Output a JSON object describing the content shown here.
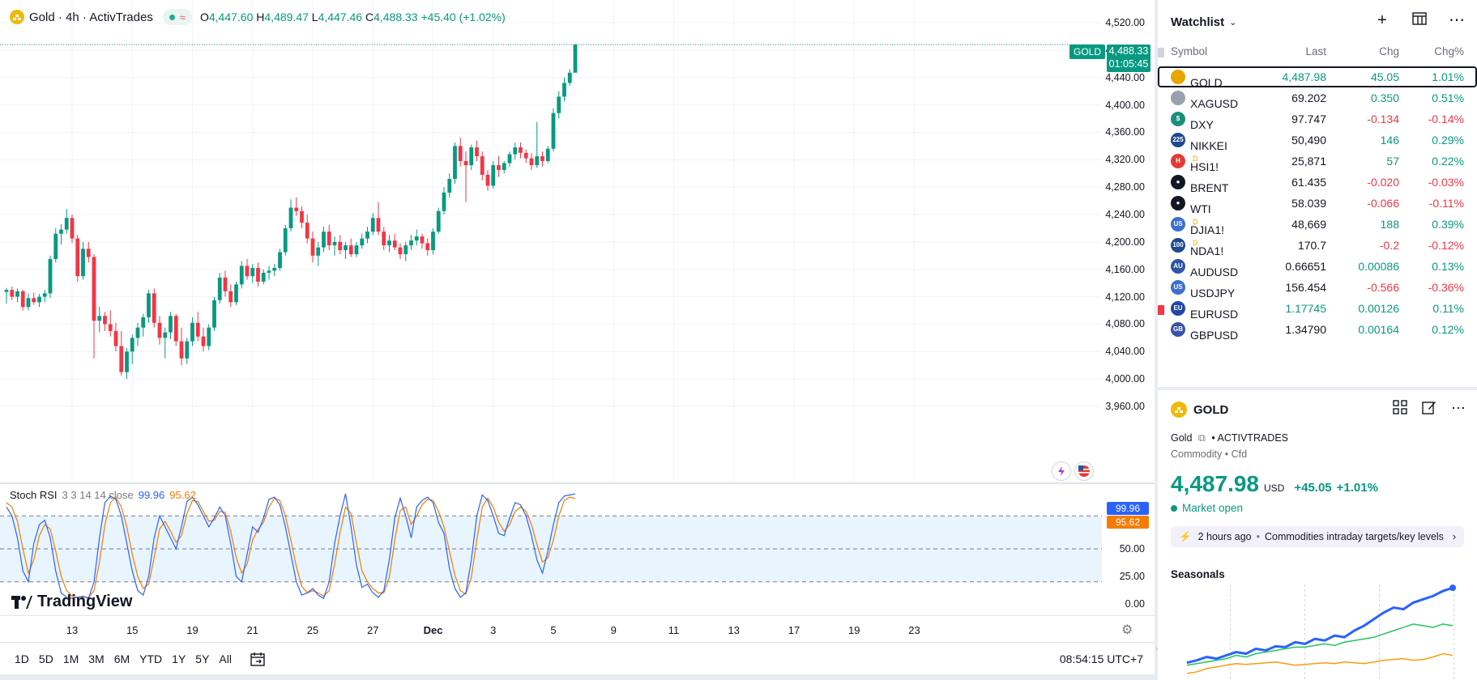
{
  "legend": {
    "symbol_title": "Gold · 4h · ActivTrades",
    "wave_glyph": "≈",
    "o_label": "O",
    "o": "4,447.60",
    "h_label": "H",
    "h": "4,489.47",
    "l_label": "L",
    "l": "4,447.46",
    "c_label": "C",
    "c": "4,488.33",
    "change": "+45.40 (+1.02%)"
  },
  "price_axis": {
    "ticks": [
      "4,520.00",
      "4,480.00",
      "4,440.00",
      "4,400.00",
      "4,360.00",
      "4,320.00",
      "4,280.00",
      "4,240.00",
      "4,200.00",
      "4,160.00",
      "4,120.00",
      "4,080.00",
      "4,040.00",
      "4,000.00",
      "3,960.00"
    ],
    "current_price": "4,488.33",
    "countdown": "01:05:45",
    "symbol_tag": "GOLD"
  },
  "candles": [
    [
      4127,
      4133,
      4110,
      4130
    ],
    [
      4130,
      4135,
      4115,
      4120
    ],
    [
      4120,
      4132,
      4112,
      4128
    ],
    [
      4128,
      4130,
      4100,
      4105
    ],
    [
      4105,
      4125,
      4100,
      4118
    ],
    [
      4118,
      4126,
      4108,
      4112
    ],
    [
      4112,
      4124,
      4105,
      4120
    ],
    [
      4120,
      4130,
      4112,
      4125
    ],
    [
      4125,
      4180,
      4118,
      4175
    ],
    [
      4175,
      4220,
      4170,
      4212
    ],
    [
      4212,
      4226,
      4196,
      4218
    ],
    [
      4218,
      4248,
      4212,
      4235
    ],
    [
      4235,
      4240,
      4198,
      4205
    ],
    [
      4205,
      4210,
      4142,
      4150
    ],
    [
      4150,
      4200,
      4145,
      4190
    ],
    [
      4190,
      4200,
      4170,
      4178
    ],
    [
      4178,
      4182,
      4030,
      4085
    ],
    [
      4085,
      4105,
      4068,
      4092
    ],
    [
      4092,
      4098,
      4070,
      4080
    ],
    [
      4080,
      4100,
      4062,
      4070
    ],
    [
      4070,
      4082,
      4040,
      4048
    ],
    [
      4048,
      4070,
      4005,
      4010
    ],
    [
      4010,
      4045,
      4000,
      4040
    ],
    [
      4040,
      4065,
      4022,
      4060
    ],
    [
      4060,
      4082,
      4048,
      4075
    ],
    [
      4075,
      4095,
      4062,
      4090
    ],
    [
      4090,
      4130,
      4082,
      4125
    ],
    [
      4125,
      4132,
      4075,
      4082
    ],
    [
      4082,
      4092,
      4050,
      4060
    ],
    [
      4060,
      4075,
      4030,
      4068
    ],
    [
      4068,
      4098,
      4058,
      4092
    ],
    [
      4092,
      4095,
      4048,
      4055
    ],
    [
      4055,
      4075,
      4020,
      4030
    ],
    [
      4030,
      4060,
      4022,
      4055
    ],
    [
      4055,
      4090,
      4048,
      4082
    ],
    [
      4082,
      4098,
      4055,
      4062
    ],
    [
      4062,
      4075,
      4040,
      4048
    ],
    [
      4048,
      4080,
      4042,
      4075
    ],
    [
      4075,
      4120,
      4070,
      4115
    ],
    [
      4115,
      4155,
      4110,
      4148
    ],
    [
      4148,
      4158,
      4120,
      4128
    ],
    [
      4128,
      4138,
      4105,
      4112
    ],
    [
      4112,
      4142,
      4108,
      4138
    ],
    [
      4138,
      4172,
      4132,
      4165
    ],
    [
      4165,
      4175,
      4145,
      4150
    ],
    [
      4150,
      4168,
      4140,
      4162
    ],
    [
      4162,
      4170,
      4135,
      4142
    ],
    [
      4142,
      4160,
      4138,
      4155
    ],
    [
      4155,
      4165,
      4145,
      4158
    ],
    [
      4158,
      4168,
      4150,
      4162
    ],
    [
      4162,
      4190,
      4158,
      4185
    ],
    [
      4185,
      4225,
      4180,
      4220
    ],
    [
      4220,
      4262,
      4215,
      4250
    ],
    [
      4250,
      4265,
      4238,
      4245
    ],
    [
      4245,
      4252,
      4220,
      4228
    ],
    [
      4228,
      4240,
      4198,
      4205
    ],
    [
      4205,
      4215,
      4170,
      4180
    ],
    [
      4180,
      4200,
      4165,
      4192
    ],
    [
      4192,
      4222,
      4185,
      4215
    ],
    [
      4215,
      4225,
      4188,
      4195
    ],
    [
      4195,
      4208,
      4180,
      4200
    ],
    [
      4200,
      4210,
      4182,
      4188
    ],
    [
      4188,
      4200,
      4175,
      4195
    ],
    [
      4195,
      4205,
      4178,
      4182
    ],
    [
      4182,
      4200,
      4178,
      4195
    ],
    [
      4195,
      4212,
      4190,
      4205
    ],
    [
      4205,
      4222,
      4198,
      4215
    ],
    [
      4215,
      4242,
      4210,
      4235
    ],
    [
      4235,
      4258,
      4210,
      4215
    ],
    [
      4215,
      4222,
      4188,
      4195
    ],
    [
      4195,
      4210,
      4185,
      4202
    ],
    [
      4202,
      4212,
      4188,
      4192
    ],
    [
      4192,
      4198,
      4175,
      4182
    ],
    [
      4182,
      4200,
      4172,
      4195
    ],
    [
      4195,
      4210,
      4188,
      4202
    ],
    [
      4202,
      4218,
      4195,
      4208
    ],
    [
      4208,
      4212,
      4190,
      4198
    ],
    [
      4198,
      4205,
      4180,
      4188
    ],
    [
      4188,
      4220,
      4182,
      4215
    ],
    [
      4215,
      4250,
      4212,
      4245
    ],
    [
      4245,
      4280,
      4240,
      4272
    ],
    [
      4272,
      4300,
      4265,
      4292
    ],
    [
      4292,
      4345,
      4285,
      4340
    ],
    [
      4340,
      4352,
      4310,
      4318
    ],
    [
      4318,
      4332,
      4258,
      4312
    ],
    [
      4312,
      4342,
      4305,
      4338
    ],
    [
      4338,
      4348,
      4318,
      4325
    ],
    [
      4325,
      4332,
      4290,
      4298
    ],
    [
      4298,
      4305,
      4275,
      4282
    ],
    [
      4282,
      4318,
      4278,
      4312
    ],
    [
      4312,
      4325,
      4295,
      4305
    ],
    [
      4305,
      4318,
      4300,
      4315
    ],
    [
      4315,
      4332,
      4310,
      4328
    ],
    [
      4328,
      4345,
      4320,
      4338
    ],
    [
      4338,
      4345,
      4322,
      4330
    ],
    [
      4330,
      4335,
      4315,
      4322
    ],
    [
      4322,
      4330,
      4305,
      4312
    ],
    [
      4312,
      4375,
      4308,
      4325
    ],
    [
      4325,
      4332,
      4310,
      4318
    ],
    [
      4318,
      4340,
      4315,
      4336
    ],
    [
      4336,
      4395,
      4332,
      4388
    ],
    [
      4388,
      4420,
      4380,
      4412
    ],
    [
      4412,
      4440,
      4405,
      4432
    ],
    [
      4432,
      4452,
      4428,
      4447
    ],
    [
      4447,
      4489,
      4447,
      4488
    ]
  ],
  "rsi": {
    "name": "Stoch RSI",
    "params": "3 3 14 14 close",
    "k_value": "99.96",
    "d_value": "95.62",
    "k_color": "#2962ff",
    "d_color": "#f57c00",
    "levels": [
      "75.00",
      "50.00",
      "25.00",
      "0.00"
    ],
    "k": [
      88,
      80,
      60,
      30,
      20,
      55,
      72,
      76,
      60,
      30,
      10,
      6,
      5,
      6,
      7,
      5,
      20,
      60,
      92,
      98,
      95,
      80,
      55,
      30,
      12,
      8,
      25,
      60,
      80,
      70,
      60,
      50,
      70,
      93,
      97,
      90,
      80,
      70,
      78,
      88,
      80,
      55,
      25,
      20,
      45,
      70,
      65,
      78,
      95,
      97,
      90,
      70,
      45,
      20,
      8,
      10,
      14,
      8,
      5,
      20,
      55,
      80,
      100,
      70,
      35,
      15,
      18,
      10,
      6,
      12,
      40,
      78,
      96,
      80,
      60,
      88,
      94,
      97,
      92,
      74,
      64,
      32,
      14,
      6,
      10,
      40,
      80,
      99,
      94,
      80,
      64,
      62,
      78,
      92,
      90,
      80,
      62,
      40,
      28,
      48,
      72,
      92,
      98,
      99,
      99.96
    ],
    "d": [
      92,
      88,
      75,
      50,
      28,
      40,
      62,
      72,
      68,
      48,
      25,
      12,
      7,
      6,
      6,
      6,
      12,
      38,
      72,
      92,
      97,
      88,
      70,
      45,
      25,
      14,
      18,
      42,
      68,
      75,
      66,
      56,
      62,
      82,
      94,
      93,
      84,
      75,
      76,
      84,
      83,
      66,
      42,
      28,
      36,
      58,
      68,
      74,
      88,
      96,
      94,
      80,
      58,
      34,
      16,
      10,
      12,
      10,
      7,
      12,
      36,
      65,
      88,
      82,
      55,
      30,
      20,
      14,
      10,
      10,
      24,
      58,
      85,
      88,
      72,
      80,
      90,
      95,
      94,
      84,
      70,
      48,
      26,
      12,
      9,
      24,
      58,
      88,
      96,
      88,
      74,
      66,
      72,
      84,
      88,
      84,
      72,
      54,
      38,
      42,
      58,
      80,
      94,
      97,
      95.62
    ]
  },
  "time_axis": {
    "ticks": [
      {
        "label": "13",
        "i": 12
      },
      {
        "label": "15",
        "i": 23
      },
      {
        "label": "19",
        "i": 34
      },
      {
        "label": "21",
        "i": 45
      },
      {
        "label": "25",
        "i": 56
      },
      {
        "label": "27",
        "i": 67
      },
      {
        "label": "Dec",
        "i": 78
      },
      {
        "label": "3",
        "i": 89
      },
      {
        "label": "5",
        "i": 100
      },
      {
        "label": "9",
        "i": 111
      },
      {
        "label": "11",
        "i": 122
      },
      {
        "label": "13",
        "i": 133
      },
      {
        "label": "17",
        "i": 144
      },
      {
        "label": "19",
        "i": 155
      },
      {
        "label": "23",
        "i": 166
      }
    ]
  },
  "tv_logo": "TradingView",
  "bottom_bar": {
    "ranges": [
      "1D",
      "5D",
      "1M",
      "3M",
      "6M",
      "YTD",
      "1Y",
      "5Y",
      "All"
    ],
    "clock": "08:54:15 UTC+7"
  },
  "watchlist": {
    "title": "Watchlist",
    "caret": "⌄",
    "add_icon": "+",
    "more_icon": "⋯",
    "columns": {
      "symbol": "Symbol",
      "last": "Last",
      "chg": "Chg",
      "chgp": "Chg%"
    },
    "rows": [
      {
        "icon": "gold",
        "iconText": "",
        "color": "#e8a600",
        "symbol": "GOLD",
        "badge": "",
        "last": "4,487.98",
        "chg": "45.05",
        "chgp": "1.01%",
        "dir": "up",
        "selected": true,
        "flag": false,
        "lastUp": true
      },
      {
        "icon": "silver",
        "iconText": "",
        "color": "#9aa0ad",
        "symbol": "XAGUSD",
        "badge": "",
        "last": "69.202",
        "chg": "0.350",
        "chgp": "0.51%",
        "dir": "up",
        "selected": false,
        "flag": false,
        "lastUp": false
      },
      {
        "icon": "dollar",
        "iconText": "$",
        "color": "#1a8f7a",
        "symbol": "DXY",
        "badge": "",
        "last": "97.747",
        "chg": "-0.134",
        "chgp": "-0.14%",
        "dir": "down",
        "selected": false,
        "flag": false,
        "lastUp": false
      },
      {
        "icon": "nikkei",
        "iconText": "225",
        "color": "#1e4a8f",
        "symbol": "NIKKEI",
        "badge": "",
        "last": "50,490",
        "chg": "146",
        "chgp": "0.29%",
        "dir": "up",
        "selected": false,
        "flag": false,
        "lastUp": false
      },
      {
        "icon": "hsi",
        "iconText": "H",
        "color": "#e53935",
        "symbol": "HSI1!",
        "badge": "D",
        "last": "25,871",
        "chg": "57",
        "chgp": "0.22%",
        "dir": "up",
        "selected": false,
        "flag": false,
        "lastUp": false
      },
      {
        "icon": "oil",
        "iconText": "●",
        "color": "#131722",
        "symbol": "BRENT",
        "badge": "",
        "last": "61.435",
        "chg": "-0.020",
        "chgp": "-0.03%",
        "dir": "down",
        "selected": false,
        "flag": false,
        "lastUp": false
      },
      {
        "icon": "oil",
        "iconText": "●",
        "color": "#131722",
        "symbol": "WTI",
        "badge": "",
        "last": "58.039",
        "chg": "-0.066",
        "chgp": "-0.11%",
        "dir": "down",
        "selected": false,
        "flag": false,
        "lastUp": false
      },
      {
        "icon": "us-flag",
        "iconText": "US",
        "color": "#3c6fd1",
        "symbol": "DJIA1!",
        "badge": "D",
        "last": "48,669",
        "chg": "188",
        "chgp": "0.39%",
        "dir": "up",
        "selected": false,
        "flag": false,
        "lastUp": false
      },
      {
        "icon": "nasdaq",
        "iconText": "100",
        "color": "#1e4a8f",
        "symbol": "NDA1!",
        "badge": "D",
        "last": "170.7",
        "chg": "-0.2",
        "chgp": "-0.12%",
        "dir": "down",
        "selected": false,
        "flag": false,
        "lastUp": false
      },
      {
        "icon": "au-flag",
        "iconText": "AU",
        "color": "#2f54a8",
        "symbol": "AUDUSD",
        "badge": "",
        "last": "0.66651",
        "chg": "0.00086",
        "chgp": "0.13%",
        "dir": "up",
        "selected": false,
        "flag": false,
        "lastUp": false
      },
      {
        "icon": "us-flag",
        "iconText": "US",
        "color": "#3c6fd1",
        "symbol": "USDJPY",
        "badge": "",
        "last": "156.454",
        "chg": "-0.566",
        "chgp": "-0.36%",
        "dir": "down",
        "selected": false,
        "flag": false,
        "lastUp": false
      },
      {
        "icon": "eu-flag",
        "iconText": "EU",
        "color": "#2046a8",
        "symbol": "EURUSD",
        "badge": "",
        "last": "1.17745",
        "chg": "0.00126",
        "chgp": "0.11%",
        "dir": "up",
        "selected": false,
        "flag": true,
        "lastUp": true
      },
      {
        "icon": "gb-flag",
        "iconText": "GB",
        "color": "#3a53a4",
        "symbol": "GBPUSD",
        "badge": "",
        "last": "1.34790",
        "chg": "0.00164",
        "chgp": "0.12%",
        "dir": "up",
        "selected": false,
        "flag": false,
        "lastUp": false
      }
    ]
  },
  "details": {
    "symbol": "GOLD",
    "name": "Gold",
    "exchange": "ACTIVTRADES",
    "category": "Commodity",
    "type": "Cfd",
    "sep": "•",
    "price": "4,487.98",
    "currency": "USD",
    "change": "+45.05",
    "change_pct": "+1.01%",
    "market_status": "Market open",
    "news_time": "2 hours ago",
    "news_dot": "•",
    "news_title": "Commodities intraday targets/key levels",
    "seasonals_title": "Seasonals",
    "seasonals": [
      {
        "color": "#2962ff",
        "values": [
          5,
          8,
          12,
          10,
          14,
          18,
          16,
          22,
          20,
          25,
          24,
          30,
          28,
          34,
          32,
          38,
          36,
          44,
          50,
          58,
          66,
          72,
          70,
          78,
          82,
          86,
          92,
          96
        ]
      },
      {
        "color": "#22c55e",
        "values": [
          2,
          4,
          6,
          8,
          10,
          14,
          12,
          16,
          18,
          20,
          22,
          24,
          24,
          26,
          28,
          26,
          30,
          32,
          34,
          36,
          40,
          44,
          48,
          52,
          50,
          48,
          52,
          50
        ]
      },
      {
        "color": "#f59e0b",
        "values": [
          -8,
          -6,
          -2,
          0,
          2,
          4,
          3,
          4,
          5,
          6,
          4,
          2,
          3,
          4,
          5,
          4,
          6,
          5,
          4,
          6,
          8,
          9,
          10,
          8,
          9,
          12,
          16,
          14
        ]
      }
    ]
  }
}
